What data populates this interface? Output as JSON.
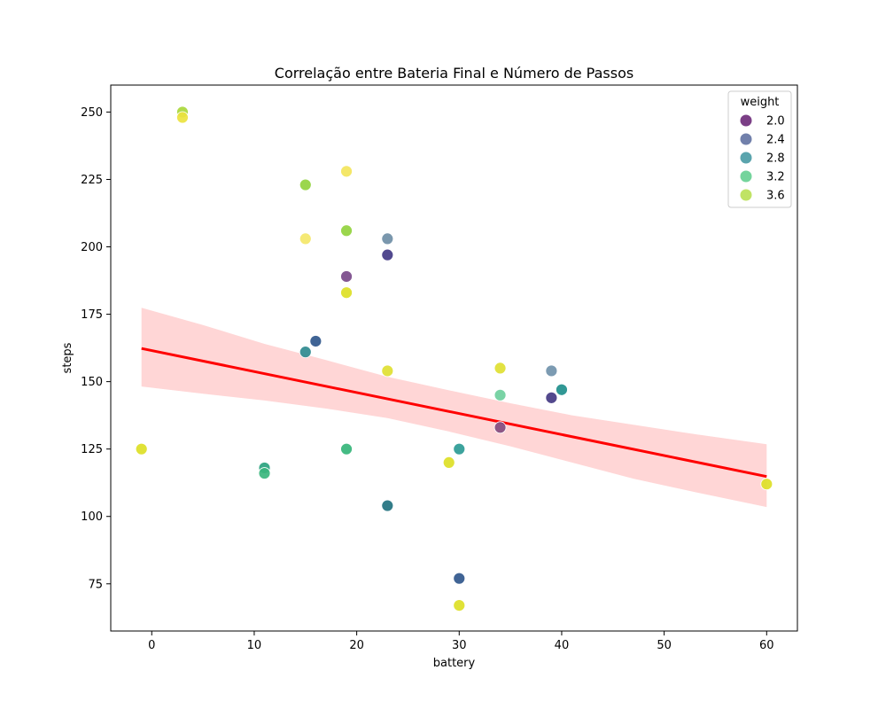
{
  "chart_data": {
    "type": "scatter",
    "title": "Correlação entre Bateria Final e Número de Passos",
    "xlabel": "battery",
    "ylabel": "steps",
    "xlim": [
      -4,
      63
    ],
    "ylim": [
      57.5,
      260
    ],
    "x_ticks": [
      0,
      10,
      20,
      30,
      40,
      50,
      60
    ],
    "y_ticks": [
      75,
      100,
      125,
      150,
      175,
      200,
      225,
      250
    ],
    "grid": false,
    "legend": {
      "title": "weight",
      "placement": "top-right",
      "entries": [
        {
          "label": "2.0",
          "color": "#7b3f86"
        },
        {
          "label": "2.4",
          "color": "#7180ab"
        },
        {
          "label": "2.8",
          "color": "#5aa4ad"
        },
        {
          "label": "3.2",
          "color": "#74d49c"
        },
        {
          "label": "3.6",
          "color": "#c0e365"
        }
      ]
    },
    "points": [
      {
        "x": 3,
        "y": 250,
        "color": "#a9d83b"
      },
      {
        "x": 3,
        "y": 248,
        "color": "#ece33f"
      },
      {
        "x": 19,
        "y": 228,
        "color": "#f3e55c"
      },
      {
        "x": 15,
        "y": 223,
        "color": "#93d23e"
      },
      {
        "x": 19,
        "y": 206,
        "color": "#93d23e"
      },
      {
        "x": 15,
        "y": 203,
        "color": "#f4e769"
      },
      {
        "x": 23,
        "y": 203,
        "color": "#6f8ea6"
      },
      {
        "x": 23,
        "y": 197,
        "color": "#433a85"
      },
      {
        "x": 19,
        "y": 189,
        "color": "#7a4a8a"
      },
      {
        "x": 19,
        "y": 183,
        "color": "#dddf26"
      },
      {
        "x": 16,
        "y": 165,
        "color": "#30578c"
      },
      {
        "x": 15,
        "y": 161,
        "color": "#2f8a8f"
      },
      {
        "x": 34,
        "y": 155,
        "color": "#dfe032"
      },
      {
        "x": 23,
        "y": 154,
        "color": "#dfe032"
      },
      {
        "x": 39,
        "y": 154,
        "color": "#7192ab"
      },
      {
        "x": 40,
        "y": 147,
        "color": "#1f8f8c"
      },
      {
        "x": 34,
        "y": 145,
        "color": "#6fcf9d"
      },
      {
        "x": 39,
        "y": 144,
        "color": "#443a83"
      },
      {
        "x": 34,
        "y": 133,
        "color": "#844b7e"
      },
      {
        "x": -1,
        "y": 125,
        "color": "#dddf26"
      },
      {
        "x": 19,
        "y": 125,
        "color": "#35b57a"
      },
      {
        "x": 30,
        "y": 125,
        "color": "#2c9b95"
      },
      {
        "x": 29,
        "y": 120,
        "color": "#dddf26"
      },
      {
        "x": 11,
        "y": 118,
        "color": "#2aa37f"
      },
      {
        "x": 11,
        "y": 116,
        "color": "#3bb67e"
      },
      {
        "x": 60,
        "y": 112,
        "color": "#dddf26"
      },
      {
        "x": 23,
        "y": 104,
        "color": "#22727f"
      },
      {
        "x": 30,
        "y": 77,
        "color": "#30578c"
      },
      {
        "x": 30,
        "y": 67,
        "color": "#dddf26"
      }
    ],
    "regression": {
      "x": [
        -1,
        60
      ],
      "y": [
        162.3,
        114.8
      ],
      "color": "#ff0000",
      "ci_color": "#ffd6d6",
      "ci_upper": [
        {
          "x": -1,
          "y": 177.4
        },
        {
          "x": 5,
          "y": 171.0
        },
        {
          "x": 11,
          "y": 164.0
        },
        {
          "x": 17,
          "y": 158.0
        },
        {
          "x": 23,
          "y": 151.8
        },
        {
          "x": 29,
          "y": 146.8
        },
        {
          "x": 35,
          "y": 142.0
        },
        {
          "x": 41,
          "y": 137.5
        },
        {
          "x": 47,
          "y": 134.0
        },
        {
          "x": 53,
          "y": 130.5
        },
        {
          "x": 60,
          "y": 126.8
        }
      ],
      "ci_lower": [
        {
          "x": -1,
          "y": 148.2
        },
        {
          "x": 5,
          "y": 145.5
        },
        {
          "x": 11,
          "y": 143.0
        },
        {
          "x": 17,
          "y": 140.0
        },
        {
          "x": 23,
          "y": 136.5
        },
        {
          "x": 29,
          "y": 131.5
        },
        {
          "x": 35,
          "y": 126.0
        },
        {
          "x": 41,
          "y": 120.0
        },
        {
          "x": 47,
          "y": 114.0
        },
        {
          "x": 53,
          "y": 109.0
        },
        {
          "x": 60,
          "y": 103.5
        }
      ]
    }
  }
}
